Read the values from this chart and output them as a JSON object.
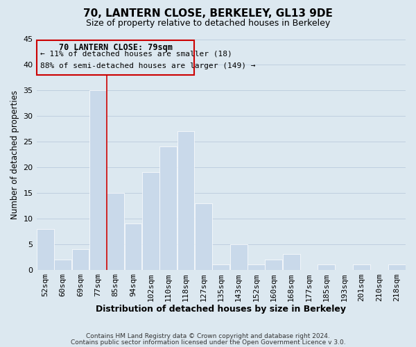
{
  "title": "70, LANTERN CLOSE, BERKELEY, GL13 9DE",
  "subtitle": "Size of property relative to detached houses in Berkeley",
  "xlabel": "Distribution of detached houses by size in Berkeley",
  "ylabel": "Number of detached properties",
  "bar_labels": [
    "52sqm",
    "60sqm",
    "69sqm",
    "77sqm",
    "85sqm",
    "94sqm",
    "102sqm",
    "110sqm",
    "118sqm",
    "127sqm",
    "135sqm",
    "143sqm",
    "152sqm",
    "160sqm",
    "168sqm",
    "177sqm",
    "185sqm",
    "193sqm",
    "201sqm",
    "210sqm",
    "218sqm"
  ],
  "bar_values": [
    8,
    2,
    4,
    35,
    15,
    9,
    19,
    24,
    27,
    13,
    1,
    5,
    1,
    2,
    3,
    0,
    1,
    0,
    1,
    0,
    1
  ],
  "bar_color": "#c9d9ea",
  "bar_edge_color": "#ffffff",
  "highlight_line_index": 3,
  "highlight_line_color": "#cc0000",
  "grid_color": "#bfcfdf",
  "background_color": "#dce8f0",
  "ylim": [
    0,
    45
  ],
  "yticks": [
    0,
    5,
    10,
    15,
    20,
    25,
    30,
    35,
    40,
    45
  ],
  "annotation_box_title": "70 LANTERN CLOSE: 79sqm",
  "annotation_line1": "← 11% of detached houses are smaller (18)",
  "annotation_line2": "88% of semi-detached houses are larger (149) →",
  "annotation_box_edge_color": "#cc0000",
  "footer_line1": "Contains HM Land Registry data © Crown copyright and database right 2024.",
  "footer_line2": "Contains public sector information licensed under the Open Government Licence v 3.0."
}
